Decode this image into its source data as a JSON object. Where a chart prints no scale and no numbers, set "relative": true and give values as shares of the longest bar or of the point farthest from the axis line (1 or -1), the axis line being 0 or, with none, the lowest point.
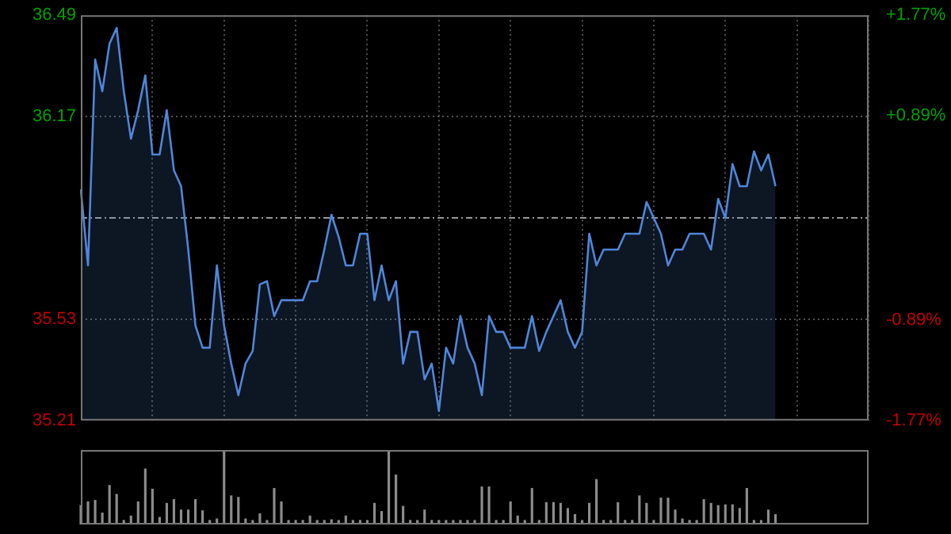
{
  "chart_data": [
    {
      "type": "area",
      "categories": [
        null,
        null,
        null,
        null,
        null,
        null,
        null,
        null,
        null,
        null,
        null,
        null,
        null,
        null,
        null,
        null,
        null,
        null,
        null,
        null,
        null,
        null,
        null,
        null,
        null,
        null,
        null,
        null,
        null,
        null,
        null,
        null,
        null,
        null,
        null,
        null,
        null,
        null,
        null,
        null,
        null,
        null,
        null,
        null,
        null,
        null,
        null,
        null,
        null,
        null,
        null,
        null,
        null,
        null,
        null,
        null,
        null,
        null,
        null,
        null,
        null,
        null,
        null,
        null,
        null,
        null,
        null,
        null,
        null,
        null,
        null,
        null,
        null,
        null,
        null,
        null,
        null,
        null,
        null,
        null,
        null,
        null,
        null,
        null,
        null,
        null,
        null,
        null,
        null,
        null,
        null,
        null,
        null,
        null,
        null,
        null,
        null,
        null,
        null,
        null,
        null,
        null,
        null,
        null,
        null,
        null,
        null,
        null,
        null,
        null,
        null
      ],
      "series": [
        {
          "color": "#4f86d9",
          "values": [
            35.94,
            35.7,
            36.35,
            36.25,
            36.4,
            36.45,
            36.25,
            36.1,
            36.19,
            36.3,
            36.05,
            36.05,
            36.19,
            36.0,
            35.95,
            35.75,
            35.51,
            35.44,
            35.44,
            35.7,
            35.51,
            35.39,
            35.29,
            35.39,
            35.43,
            35.64,
            35.65,
            35.54,
            35.59,
            35.59,
            35.59,
            35.59,
            35.65,
            35.65,
            35.75,
            35.86,
            35.79,
            35.7,
            35.7,
            35.8,
            35.8,
            35.59,
            35.7,
            35.59,
            35.65,
            35.39,
            35.49,
            35.49,
            35.34,
            35.39,
            35.24,
            35.44,
            35.39,
            35.54,
            35.44,
            35.39,
            35.29,
            35.54,
            35.49,
            35.49,
            35.44,
            35.44,
            35.44,
            35.54,
            35.43,
            35.49,
            35.54,
            35.59,
            35.49,
            35.44,
            35.49,
            35.8,
            35.7,
            35.75,
            35.75,
            35.75,
            35.8,
            35.8,
            35.8,
            35.9,
            35.85,
            35.8,
            35.7,
            35.75,
            35.75,
            35.8,
            35.8,
            35.8,
            35.75,
            35.91,
            35.85,
            36.02,
            35.95,
            35.95,
            36.06,
            36.0,
            36.05,
            35.95,
            null,
            null,
            null,
            null,
            null,
            null,
            null,
            null,
            null,
            null,
            null,
            null,
            null
          ]
        }
      ],
      "ylim": [
        35.21,
        36.49
      ],
      "yticks": [
        35.21,
        35.53,
        36.17,
        36.49
      ],
      "y2lim": [
        -1.77,
        1.77
      ],
      "y2ticks": [
        {
          "value": -1.77,
          "label": "-1.77%"
        },
        {
          "value": -0.89,
          "label": "-0.89%"
        },
        {
          "value": 0.89,
          "label": "+0.89%"
        },
        {
          "value": 1.77,
          "label": "+1.77%"
        }
      ],
      "ref_lines": [
        {
          "axis": "y",
          "value": 35.85
        }
      ],
      "grid": true
    },
    {
      "type": "bar",
      "relative": true,
      "categories": [
        null,
        null,
        null,
        null,
        null,
        null,
        null,
        null,
        null,
        null,
        null,
        null,
        null,
        null,
        null,
        null,
        null,
        null,
        null,
        null,
        null,
        null,
        null,
        null,
        null,
        null,
        null,
        null,
        null,
        null,
        null,
        null,
        null,
        null,
        null,
        null,
        null,
        null,
        null,
        null,
        null,
        null,
        null,
        null,
        null,
        null,
        null,
        null,
        null,
        null,
        null,
        null,
        null,
        null,
        null,
        null,
        null,
        null,
        null,
        null,
        null,
        null,
        null,
        null,
        null,
        null,
        null,
        null,
        null,
        null,
        null,
        null,
        null,
        null,
        null,
        null,
        null,
        null,
        null,
        null,
        null,
        null,
        null,
        null,
        null,
        null,
        null,
        null,
        null,
        null,
        null,
        null,
        null,
        null,
        null,
        null,
        null,
        null,
        null,
        null,
        null,
        null,
        null,
        null,
        null,
        null,
        null,
        null,
        null,
        null,
        null
      ],
      "series": [
        {
          "color": "#8c8c8c",
          "values": [
            0.26,
            0.31,
            0.33,
            0.16,
            0.53,
            0.41,
            0.06,
            0.12,
            0.31,
            0.75,
            0.48,
            0.1,
            0.29,
            0.34,
            0.2,
            0.2,
            0.34,
            0.19,
            0.06,
            0.08,
            0.98,
            0.39,
            0.37,
            0.08,
            0.06,
            0.15,
            0.06,
            0.49,
            0.31,
            0.06,
            0.06,
            0.06,
            0.12,
            0.06,
            0.06,
            0.07,
            0.06,
            0.12,
            0.06,
            0.06,
            0.06,
            0.29,
            0.18,
            1,
            0.67,
            0.25,
            0.06,
            0.06,
            0.2,
            0.06,
            0.06,
            0.06,
            0.06,
            0.06,
            0.06,
            0.06,
            0.51,
            0.51,
            0.06,
            0.06,
            0.31,
            0.12,
            0.06,
            0.49,
            0.06,
            0.3,
            0.3,
            0.29,
            0.22,
            0.14,
            0.06,
            0.29,
            0.61,
            0.06,
            0.06,
            0.3,
            0.06,
            0.06,
            0.39,
            0.29,
            0.06,
            0.36,
            0.36,
            0.2,
            0.08,
            0.06,
            0.06,
            0.34,
            0.29,
            0.26,
            0.27,
            0.27,
            0.22,
            0.49,
            0.06,
            0.06,
            0.2,
            0.14,
            null,
            null,
            null,
            null,
            null,
            null,
            null,
            null,
            null,
            null,
            null,
            null,
            null
          ]
        }
      ]
    }
  ]
}
